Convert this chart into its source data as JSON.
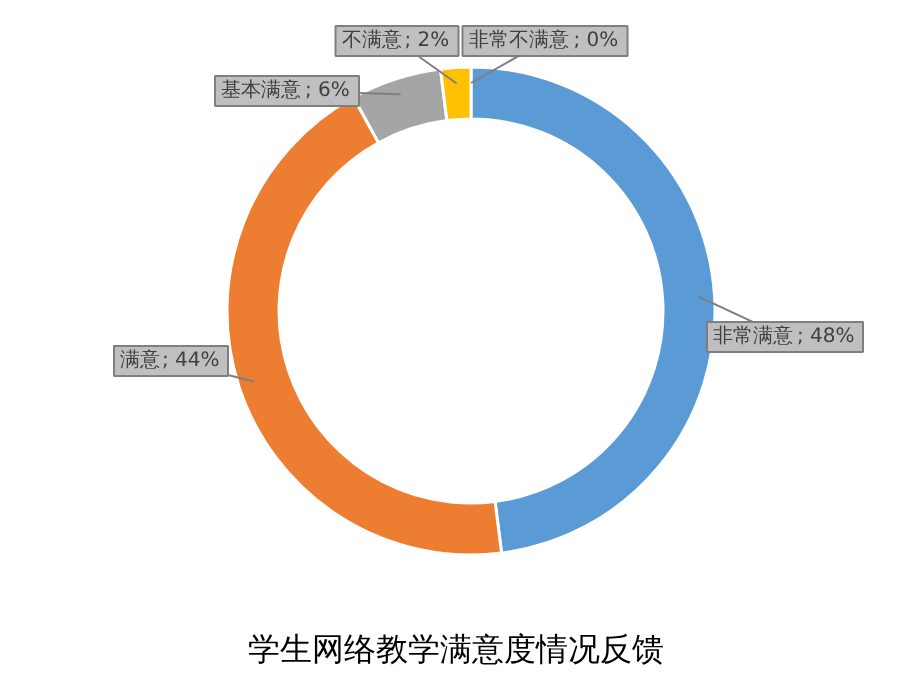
{
  "chart_data": {
    "type": "donut",
    "title": "学生网络教学满意度情况反馈",
    "categories": [
      "非常满意",
      "满意",
      "基本满意",
      "不满意",
      "非常不满意"
    ],
    "values": [
      48,
      44,
      6,
      2,
      0
    ],
    "colors": [
      "#5b9bd5",
      "#ed7d31",
      "#a5a5a5",
      "#ffc000",
      "#4472c4"
    ],
    "value_labels": [
      "; 48%",
      "; 44%",
      "; 6%",
      "; 2%",
      "; 0%"
    ],
    "legend": false
  }
}
